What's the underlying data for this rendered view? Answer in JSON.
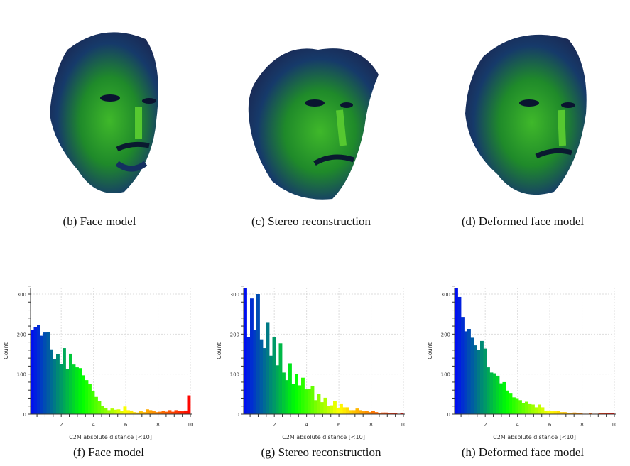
{
  "captions": {
    "b": "(b) Face model",
    "c": "(c) Stereo reconstruction",
    "d": "(d) Deformed face model",
    "f": "(f) Face model",
    "g": "(g) Stereo reconstruction",
    "h": "(h) Deformed face model"
  },
  "colormap": [
    "#0000ff",
    "#00ff00",
    "#ffff00",
    "#ff0000"
  ],
  "chart_data": [
    {
      "type": "bar",
      "title": "Face model",
      "xlabel": "C2M absolute distance [<10]",
      "ylabel": "Count",
      "xlim": [
        0.1,
        10
      ],
      "ylim": [
        0,
        320
      ],
      "xticks": [
        2,
        4,
        6,
        8,
        10
      ],
      "yticks": [
        0,
        100,
        200,
        300
      ],
      "bin_width": 0.198,
      "grid": true,
      "values": [
        210,
        218,
        222,
        196,
        204,
        205,
        162,
        138,
        150,
        126,
        165,
        113,
        151,
        124,
        117,
        115,
        97,
        85,
        75,
        58,
        43,
        32,
        20,
        15,
        10,
        14,
        11,
        12,
        8,
        19,
        10,
        9,
        5,
        4,
        7,
        5,
        12,
        10,
        7,
        5,
        6,
        8,
        6,
        10,
        6,
        10,
        8,
        7,
        9,
        47
      ]
    },
    {
      "type": "bar",
      "title": "Stereo reconstruction",
      "xlabel": "C2M absolute distance [<10]",
      "ylabel": "Count",
      "xlim": [
        0.1,
        10
      ],
      "ylim": [
        0,
        320
      ],
      "xticks": [
        2,
        4,
        6,
        8,
        10
      ],
      "yticks": [
        0,
        100,
        200,
        300
      ],
      "bin_width": 0.198,
      "grid": true,
      "values": [
        325,
        193,
        289,
        210,
        300,
        187,
        165,
        230,
        146,
        193,
        122,
        177,
        104,
        85,
        127,
        75,
        100,
        72,
        91,
        62,
        63,
        70,
        35,
        51,
        30,
        41,
        20,
        22,
        33,
        15,
        25,
        17,
        17,
        10,
        10,
        14,
        10,
        7,
        8,
        5,
        8,
        5,
        3,
        4,
        4,
        3,
        2,
        2,
        1,
        2
      ]
    },
    {
      "type": "bar",
      "title": "Deformed face model",
      "xlabel": "C2M absolute distance [<10]",
      "ylabel": "Count",
      "xlim": [
        0.1,
        10
      ],
      "ylim": [
        0,
        320
      ],
      "xticks": [
        2,
        4,
        6,
        8,
        10
      ],
      "yticks": [
        0,
        100,
        200,
        300
      ],
      "bin_width": 0.198,
      "grid": true,
      "values": [
        325,
        293,
        243,
        207,
        213,
        191,
        172,
        160,
        183,
        164,
        117,
        104,
        102,
        96,
        77,
        80,
        59,
        53,
        42,
        40,
        35,
        28,
        31,
        25,
        24,
        17,
        24,
        17,
        9,
        9,
        7,
        7,
        8,
        5,
        5,
        3,
        3,
        4,
        2,
        2,
        1,
        1,
        3,
        1,
        1,
        2,
        2,
        3,
        3,
        3
      ]
    }
  ]
}
